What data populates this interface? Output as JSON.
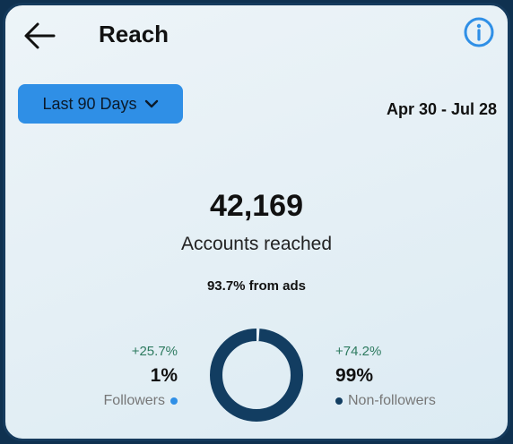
{
  "header": {
    "title": "Reach",
    "back_icon": "arrow-left-icon",
    "info_icon": "info-circle-icon"
  },
  "filter": {
    "range_label": "Last 90 Days",
    "dropdown_icon": "chevron-down-icon",
    "date_range": "Apr 30 - Jul 28"
  },
  "summary": {
    "accounts_reached": "42,169",
    "accounts_label": "Accounts reached",
    "ads_share": "93.7% from ads"
  },
  "breakdown": {
    "followers": {
      "change": "+25.7%",
      "percent": "1%",
      "label": "Followers",
      "share": 0.01,
      "color": "#2f8fe6"
    },
    "non_followers": {
      "change": "+74.2%",
      "percent": "99%",
      "label": "Non-followers",
      "share": 0.99,
      "color": "#123d61"
    }
  },
  "colors": {
    "accent": "#2f8fe6",
    "ring": "#123d61",
    "positive": "#2d7a5f"
  }
}
